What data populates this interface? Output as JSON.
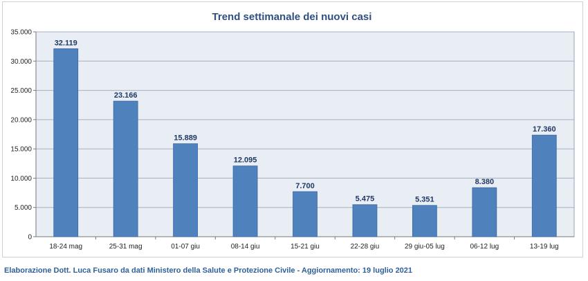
{
  "chart_data": {
    "type": "bar",
    "title": "Trend settimanale dei nuovi casi",
    "categories": [
      "18-24 mag",
      "25-31 mag",
      "01-07 giu",
      "08-14 giu",
      "15-21 giu",
      "22-28 giu",
      "29 giu-05 lug",
      "06-12 lug",
      "13-19 lug"
    ],
    "values": [
      32119,
      23166,
      15889,
      12095,
      7700,
      5475,
      5351,
      8380,
      17360
    ],
    "value_labels": [
      "32.119",
      "23.166",
      "15.889",
      "12.095",
      "7.700",
      "5.475",
      "5.351",
      "8.380",
      "17.360"
    ],
    "ylim": [
      0,
      35000
    ],
    "yticks": [
      0,
      5000,
      10000,
      15000,
      20000,
      25000,
      30000,
      35000
    ],
    "ytick_labels": [
      "0",
      "5.000",
      "10.000",
      "15.000",
      "20.000",
      "25.000",
      "30.000",
      "35.000"
    ],
    "xlabel": "",
    "ylabel": "",
    "grid": true,
    "colors": {
      "bar": "#4f81bd",
      "bar_border": "#3a6aa8",
      "plot_bg": "#e9edf4",
      "title": "#2f4f80",
      "credit": "#2f6099"
    }
  },
  "footer": {
    "credit": "Elaborazione Dott. Luca Fusaro da dati Ministero della Salute e Protezione Civile - Aggiornamento: 19 luglio 2021"
  }
}
